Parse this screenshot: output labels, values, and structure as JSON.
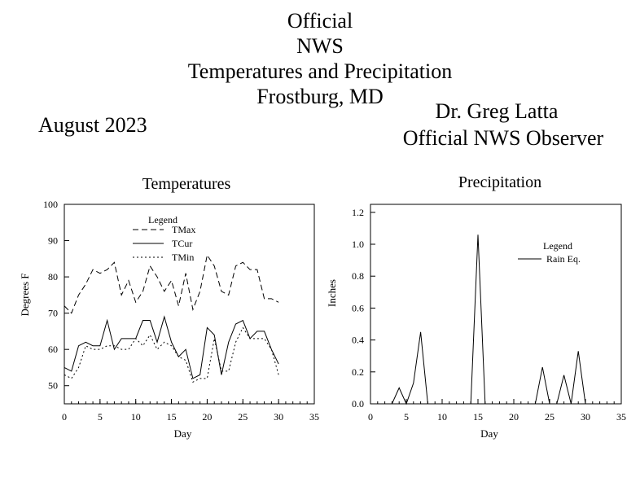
{
  "header": {
    "line1": "Official",
    "line2": "NWS",
    "line3": "Temperatures and Precipitation",
    "line4": "Frostburg, MD"
  },
  "month": "August 2023",
  "observer": {
    "name": "Dr. Greg Latta",
    "role": "Official NWS Observer"
  },
  "chart_data": [
    {
      "type": "line",
      "title": "Temperatures",
      "xlabel": "Day",
      "ylabel": "Degrees F",
      "xlim": [
        0,
        35
      ],
      "ylim": [
        45,
        100
      ],
      "x_ticks": [
        0,
        5,
        10,
        15,
        20,
        25,
        30,
        35
      ],
      "y_ticks": [
        50,
        60,
        70,
        80,
        90,
        100
      ],
      "legend_title": "Legend",
      "legend_position": "top-left",
      "x": [
        0,
        1,
        2,
        3,
        4,
        5,
        6,
        7,
        8,
        9,
        10,
        11,
        12,
        13,
        14,
        15,
        16,
        17,
        18,
        19,
        20,
        21,
        22,
        23,
        24,
        25,
        26,
        27,
        28,
        29,
        30
      ],
      "series": [
        {
          "name": "TMax",
          "style": "dashed",
          "values": [
            72,
            70,
            75,
            78,
            82,
            81,
            82,
            84,
            75,
            79,
            73,
            76,
            83,
            80,
            76,
            79,
            72,
            81,
            71,
            76,
            86,
            83,
            76,
            75,
            83,
            84,
            82,
            82,
            74,
            74,
            73
          ]
        },
        {
          "name": "TCur",
          "style": "solid",
          "values": [
            55,
            54,
            61,
            62,
            61,
            61,
            68,
            60,
            63,
            63,
            63,
            68,
            68,
            62,
            69,
            62,
            58,
            60,
            52,
            53,
            66,
            64,
            53,
            62,
            67,
            68,
            63,
            65,
            65,
            60,
            56
          ]
        },
        {
          "name": "TMin",
          "style": "dotted",
          "values": [
            53,
            52,
            55,
            61,
            60,
            60,
            61,
            61,
            60,
            60,
            63,
            61,
            64,
            60,
            62,
            61,
            58,
            57,
            51,
            52,
            52,
            63,
            54,
            54,
            62,
            66,
            63,
            63,
            63,
            60,
            53
          ]
        }
      ]
    },
    {
      "type": "line",
      "title": "Precipitation",
      "xlabel": "Day",
      "ylabel": "Inches",
      "xlim": [
        0,
        35
      ],
      "ylim": [
        0,
        1.25
      ],
      "x_ticks": [
        0,
        5,
        10,
        15,
        20,
        25,
        30,
        35
      ],
      "y_ticks": [
        0.0,
        0.2,
        0.4,
        0.6,
        0.8,
        1.0,
        1.2
      ],
      "y_tick_labels": [
        "0.0",
        "0.2",
        "0.4",
        "0.6",
        "0.8",
        "1.0",
        "1.2"
      ],
      "legend_title": "Legend",
      "legend_position": "top-right",
      "x": [
        0,
        1,
        2,
        3,
        4,
        5,
        6,
        7,
        8,
        9,
        10,
        11,
        12,
        13,
        14,
        15,
        16,
        17,
        18,
        19,
        20,
        21,
        22,
        23,
        24,
        25,
        26,
        27,
        28,
        29,
        30
      ],
      "series": [
        {
          "name": "Rain Eq.",
          "style": "solid",
          "values": [
            0,
            0,
            0,
            0,
            0.1,
            0,
            0.13,
            0.45,
            0,
            0,
            0,
            0,
            0,
            0,
            0,
            1.06,
            0,
            0,
            0,
            0,
            0,
            0,
            0,
            0,
            0.23,
            0,
            0,
            0.18,
            0,
            0.33,
            0
          ]
        }
      ]
    }
  ]
}
